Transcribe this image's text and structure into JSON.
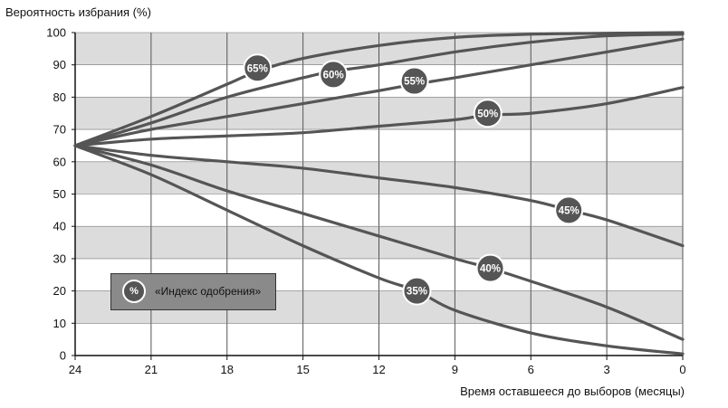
{
  "chart_data": {
    "type": "line",
    "ylabel": "Вероятность избрания (%)",
    "xlabel": "Время оставшееся до выборов (месяцы)",
    "x_ticks": [
      "24",
      "21",
      "18",
      "15",
      "12",
      "9",
      "6",
      "3",
      "0"
    ],
    "y_ticks": [
      "0",
      "10",
      "20",
      "30",
      "40",
      "50",
      "60",
      "70",
      "80",
      "90",
      "100"
    ],
    "xlim": [
      24,
      0
    ],
    "ylim": [
      0,
      100
    ],
    "grid": "alternating horizontal bands",
    "series": [
      {
        "name": "65%",
        "label_at": [
          16.8,
          89
        ],
        "points": [
          [
            24,
            65
          ],
          [
            21,
            74
          ],
          [
            18,
            84
          ],
          [
            16.8,
            88
          ],
          [
            15,
            92
          ],
          [
            12,
            96
          ],
          [
            9,
            98.5
          ],
          [
            6,
            99.5
          ],
          [
            3,
            99.8
          ],
          [
            0,
            100
          ]
        ]
      },
      {
        "name": "60%",
        "label_at": [
          13.8,
          87
        ],
        "points": [
          [
            24,
            65
          ],
          [
            21,
            72
          ],
          [
            18,
            80
          ],
          [
            15,
            86
          ],
          [
            13.8,
            88
          ],
          [
            12,
            90
          ],
          [
            9,
            94
          ],
          [
            6,
            97
          ],
          [
            3,
            99
          ],
          [
            0,
            99.5
          ]
        ]
      },
      {
        "name": "55%",
        "label_at": [
          10.6,
          85
        ],
        "points": [
          [
            24,
            65
          ],
          [
            21,
            70
          ],
          [
            18,
            74
          ],
          [
            15,
            78
          ],
          [
            12,
            82
          ],
          [
            10.6,
            84
          ],
          [
            9,
            86
          ],
          [
            6,
            90
          ],
          [
            3,
            94
          ],
          [
            0,
            98
          ]
        ]
      },
      {
        "name": "50%",
        "label_at": [
          7.7,
          75
        ],
        "points": [
          [
            24,
            65
          ],
          [
            21,
            67
          ],
          [
            18,
            68
          ],
          [
            15,
            69
          ],
          [
            12,
            71
          ],
          [
            9,
            73
          ],
          [
            7.7,
            74.5
          ],
          [
            6,
            75
          ],
          [
            3,
            78
          ],
          [
            0,
            83
          ]
        ]
      },
      {
        "name": "45%",
        "label_at": [
          4.5,
          45
        ],
        "points": [
          [
            24,
            65
          ],
          [
            21,
            62
          ],
          [
            18,
            60
          ],
          [
            15,
            58
          ],
          [
            12,
            55
          ],
          [
            9,
            52
          ],
          [
            6,
            48
          ],
          [
            4.5,
            45
          ],
          [
            3,
            42
          ],
          [
            0,
            34
          ]
        ]
      },
      {
        "name": "40%",
        "label_at": [
          7.6,
          27
        ],
        "points": [
          [
            24,
            65
          ],
          [
            21,
            59
          ],
          [
            18,
            51
          ],
          [
            15,
            44
          ],
          [
            12,
            37
          ],
          [
            9,
            30
          ],
          [
            7.6,
            27
          ],
          [
            6,
            23
          ],
          [
            3,
            15
          ],
          [
            0,
            5
          ]
        ]
      },
      {
        "name": "35%",
        "label_at": [
          10.5,
          20
        ],
        "points": [
          [
            24,
            65
          ],
          [
            21,
            56
          ],
          [
            18,
            45
          ],
          [
            15,
            34
          ],
          [
            12,
            24
          ],
          [
            10.5,
            20
          ],
          [
            9,
            14
          ],
          [
            6,
            7
          ],
          [
            3,
            3
          ],
          [
            0,
            0.5
          ]
        ]
      }
    ],
    "legend": {
      "badge": "%",
      "text": "«Индекс одобрения»"
    }
  },
  "colors": {
    "band_gray": "#dcdcdc",
    "band_white": "#ffffff",
    "line": "#555555",
    "badge_fill": "#555555",
    "legend_fill": "#8a8a8a"
  }
}
